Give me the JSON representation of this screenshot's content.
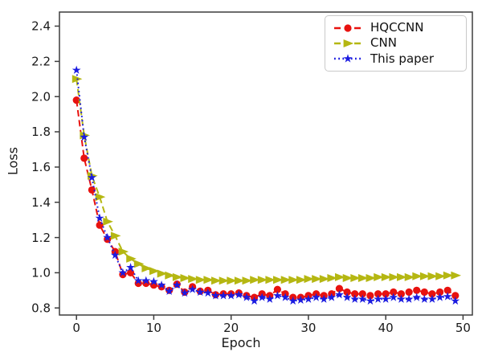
{
  "figure": {
    "background": "#ffffff",
    "frame_color": "#3d3d3d",
    "text_color": "#1a1a1a"
  },
  "chart_data": {
    "type": "line",
    "title": "",
    "xlabel": "Epoch",
    "ylabel": "Loss",
    "xlim": [
      -2.2,
      51.2
    ],
    "ylim": [
      0.76,
      2.48
    ],
    "x_ticks": [
      0,
      10,
      20,
      30,
      40,
      50
    ],
    "y_ticks": [
      0.8,
      1.0,
      1.2,
      1.4,
      1.6,
      1.8,
      2.0,
      2.2,
      2.4
    ],
    "grid": false,
    "legend_position": "upper right",
    "x": [
      0,
      1,
      2,
      3,
      4,
      5,
      6,
      7,
      8,
      9,
      10,
      11,
      12,
      13,
      14,
      15,
      16,
      17,
      18,
      19,
      20,
      21,
      22,
      23,
      24,
      25,
      26,
      27,
      28,
      29,
      30,
      31,
      32,
      33,
      34,
      35,
      36,
      37,
      38,
      39,
      40,
      41,
      42,
      43,
      44,
      45,
      46,
      47,
      48,
      49
    ],
    "series": [
      {
        "name": "HQCCNN",
        "color": "#e8120f",
        "linestyle": "dashed",
        "marker": "circle",
        "values": [
          1.98,
          1.65,
          1.47,
          1.27,
          1.19,
          1.12,
          0.99,
          1.0,
          0.94,
          0.94,
          0.93,
          0.92,
          0.9,
          0.935,
          0.89,
          0.92,
          0.895,
          0.9,
          0.875,
          0.88,
          0.88,
          0.885,
          0.87,
          0.86,
          0.88,
          0.87,
          0.905,
          0.88,
          0.86,
          0.86,
          0.87,
          0.88,
          0.87,
          0.88,
          0.91,
          0.89,
          0.88,
          0.88,
          0.87,
          0.88,
          0.88,
          0.89,
          0.88,
          0.89,
          0.9,
          0.89,
          0.88,
          0.89,
          0.9,
          0.87
        ]
      },
      {
        "name": "CNN",
        "color": "#b5b712",
        "linestyle": "dashed",
        "marker": "triangle-right",
        "values": [
          2.1,
          1.78,
          1.55,
          1.43,
          1.29,
          1.21,
          1.12,
          1.08,
          1.05,
          1.025,
          1.01,
          0.995,
          0.985,
          0.975,
          0.97,
          0.965,
          0.96,
          0.96,
          0.955,
          0.955,
          0.955,
          0.955,
          0.955,
          0.96,
          0.96,
          0.96,
          0.96,
          0.96,
          0.96,
          0.96,
          0.965,
          0.965,
          0.965,
          0.97,
          0.975,
          0.97,
          0.97,
          0.97,
          0.97,
          0.975,
          0.975,
          0.975,
          0.975,
          0.975,
          0.98,
          0.98,
          0.98,
          0.98,
          0.985,
          0.985
        ]
      },
      {
        "name": "This paper",
        "color": "#1b1be0",
        "linestyle": "dotted",
        "marker": "star",
        "values": [
          2.15,
          1.77,
          1.54,
          1.31,
          1.2,
          1.1,
          1.0,
          1.03,
          0.955,
          0.955,
          0.95,
          0.93,
          0.895,
          0.93,
          0.885,
          0.905,
          0.89,
          0.885,
          0.87,
          0.87,
          0.87,
          0.875,
          0.86,
          0.84,
          0.86,
          0.85,
          0.87,
          0.86,
          0.84,
          0.845,
          0.85,
          0.86,
          0.85,
          0.86,
          0.875,
          0.86,
          0.85,
          0.85,
          0.84,
          0.85,
          0.85,
          0.86,
          0.85,
          0.85,
          0.86,
          0.85,
          0.85,
          0.86,
          0.865,
          0.84
        ]
      }
    ]
  }
}
